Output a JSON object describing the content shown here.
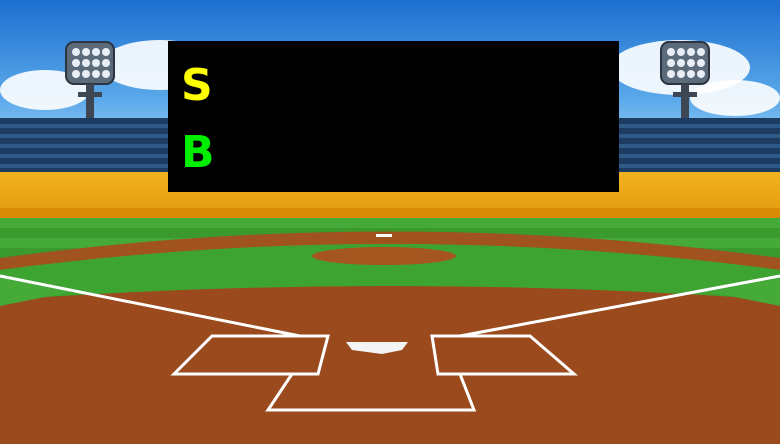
{
  "scoreboard": {
    "strike_label": "S",
    "ball_label": "B",
    "strike_color": "#ffff00",
    "ball_color": "#00ee00"
  },
  "colors": {
    "dirt": "#9a4a1c",
    "grass": "#3a9a2e",
    "wall": "#f2b21f",
    "sky": "#3a8fd8"
  }
}
